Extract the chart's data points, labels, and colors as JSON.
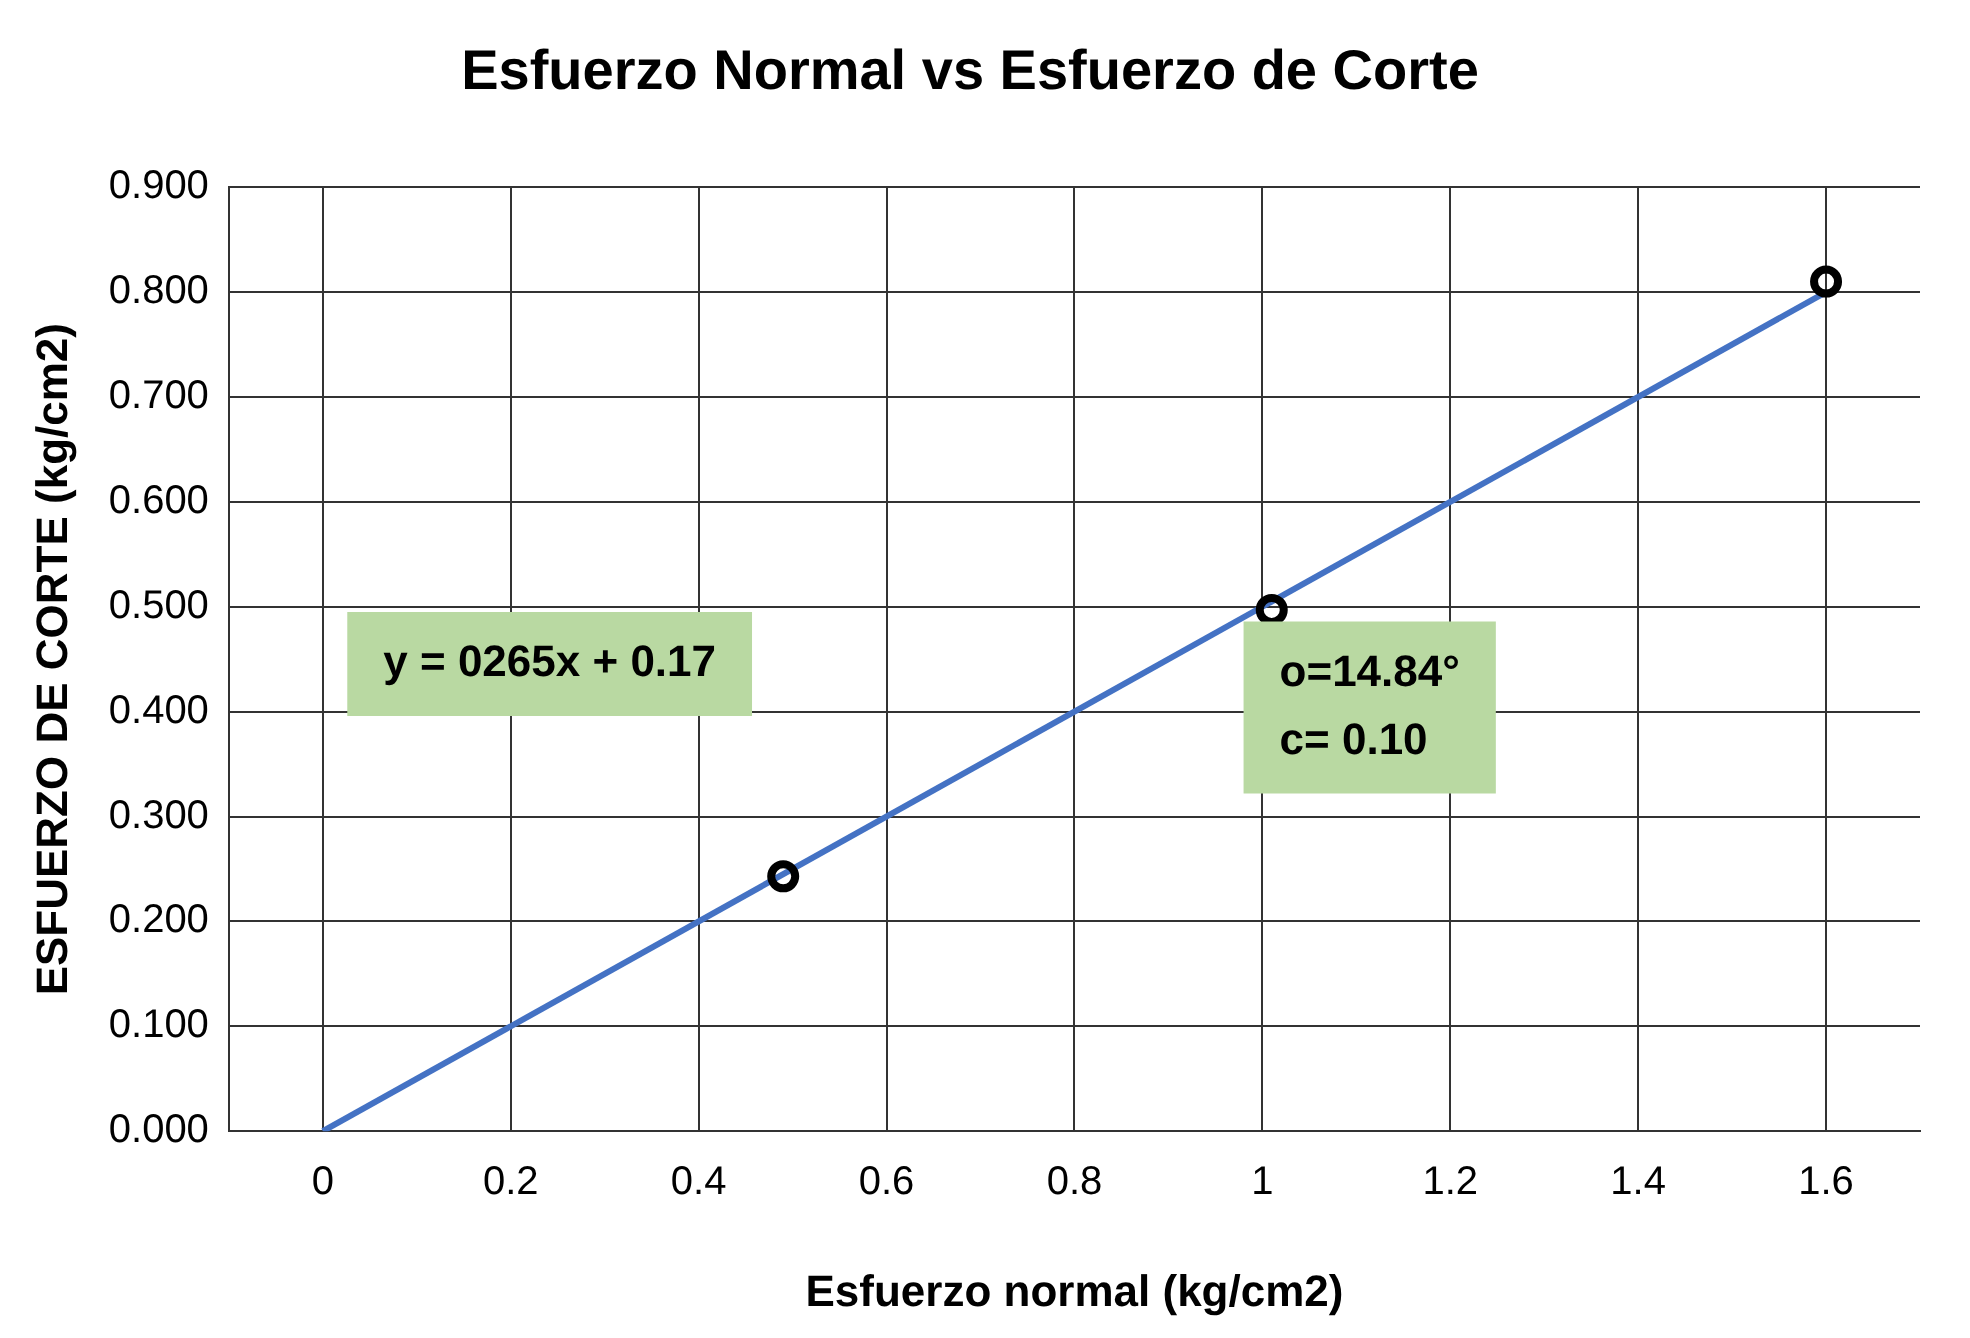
{
  "chart_data": {
    "type": "scatter",
    "title": "Esfuerzo Normal vs Esfuerzo de Corte",
    "xlabel": "Esfuerzo normal (kg/cm2)",
    "ylabel": "ESFUERZO DE CORTE (kg/cm2)",
    "x": [
      0.49,
      1.01,
      1.6
    ],
    "series": [
      {
        "type": "scatter",
        "color": "#000000",
        "values": [
          0.243,
          0.497,
          0.81
        ],
        "marker": "circle"
      },
      {
        "type": "line",
        "color": "#4472c4",
        "x": [
          0,
          1.6
        ],
        "values": [
          0,
          0.8
        ],
        "marker": "none"
      }
    ],
    "xlim": [
      -0.1,
      1.7
    ],
    "xticks": [
      0,
      0.2,
      0.4,
      0.6,
      0.8,
      1,
      1.2,
      1.4,
      1.6
    ],
    "ylim": [
      0,
      0.9
    ],
    "yticks": [
      {
        "value": 0,
        "label": "0.000"
      },
      {
        "value": 0.1,
        "label": "0.100"
      },
      {
        "value": 0.2,
        "label": "0.200"
      },
      {
        "value": 0.3,
        "label": "0.300"
      },
      {
        "value": 0.4,
        "label": "0.400"
      },
      {
        "value": 0.5,
        "label": "0.500"
      },
      {
        "value": 0.6,
        "label": "0.600"
      },
      {
        "value": 0.7,
        "label": "0.700"
      },
      {
        "value": 0.8,
        "label": "0.800"
      },
      {
        "value": 0.9,
        "label": "0.900"
      }
    ],
    "annotations": [
      "y = 0265x + 0.17",
      "o=14.84°\nc= 0.10"
    ],
    "grid": true,
    "legend": false
  }
}
